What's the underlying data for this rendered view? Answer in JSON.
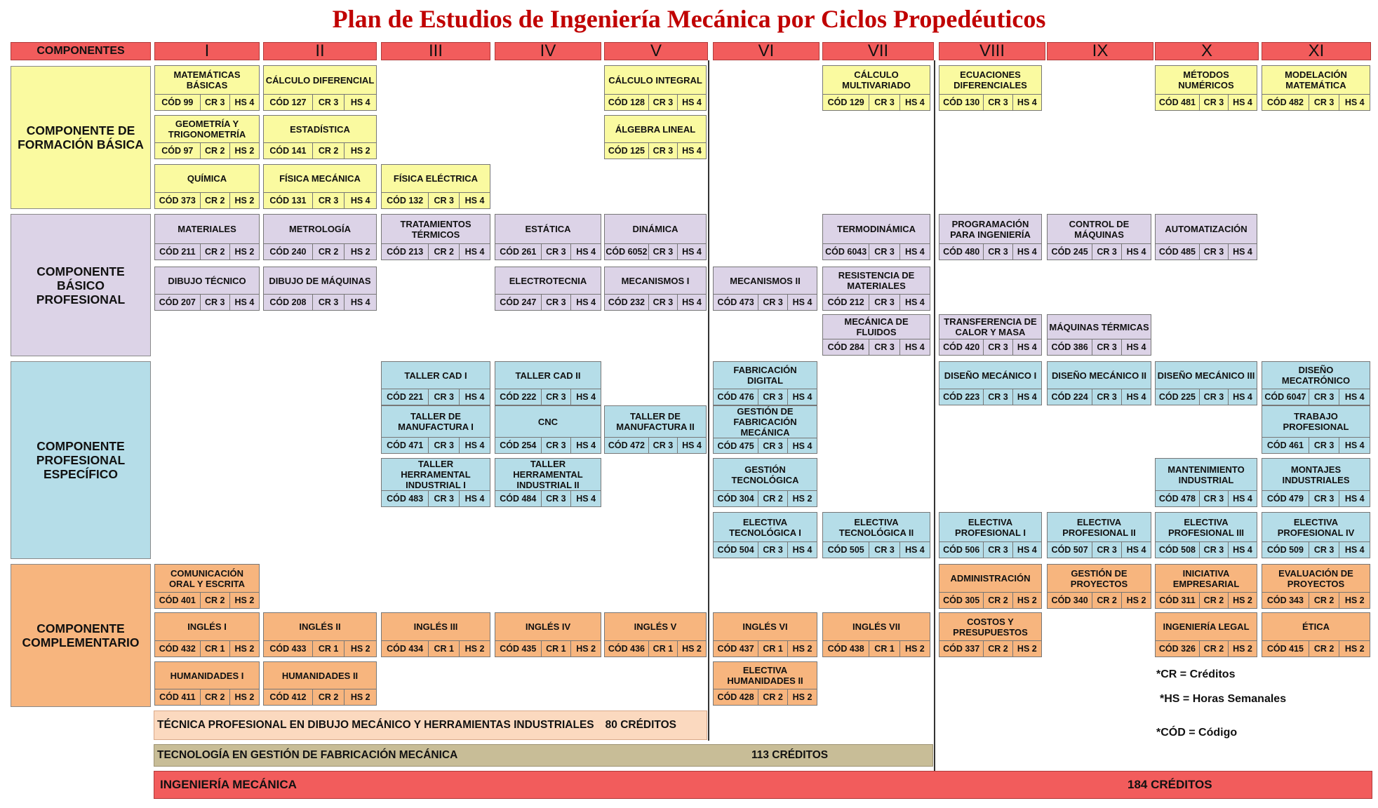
{
  "title": "Plan de Estudios de Ingeniería Mecánica por Ciclos Propedéuticos",
  "header": {
    "components_label": "COMPONENTES",
    "semesters": [
      "I",
      "II",
      "III",
      "IV",
      "V",
      "VI",
      "VII",
      "VIII",
      "IX",
      "X",
      "XI"
    ]
  },
  "categories": [
    {
      "label": "COMPONENTE DE FORMACIÓN  BÁSICA"
    },
    {
      "label": "COMPONENTE BÁSICO PROFESIONAL"
    },
    {
      "label": "COMPONENTE PROFESIONAL ESPECÍFICO"
    },
    {
      "label": "COMPONENTE COMPLEMENTARIO"
    }
  ],
  "courses": [
    {
      "name": "MATEMÁTICAS BÁSICAS",
      "cod": "CÓD 99",
      "cr": "CR 3",
      "hs": "HS 4",
      "type": "basica",
      "col": 0,
      "row": "b1"
    },
    {
      "name": "CÁLCULO DIFERENCIAL",
      "cod": "CÓD 127",
      "cr": "CR 3",
      "hs": "HS 4",
      "type": "basica",
      "col": 1,
      "row": "b1"
    },
    {
      "name": "CÁLCULO INTEGRAL",
      "cod": "CÓD 128",
      "cr": "CR 3",
      "hs": "HS 4",
      "type": "basica",
      "col": 4,
      "row": "b1"
    },
    {
      "name": "CÁLCULO MULTIVARIADO",
      "cod": "CÓD 129",
      "cr": "CR 3",
      "hs": "HS 4",
      "type": "basica",
      "col": 6,
      "row": "b1"
    },
    {
      "name": "ECUACIONES DIFERENCIALES",
      "cod": "CÓD 130",
      "cr": "CR 3",
      "hs": "HS 4",
      "type": "basica",
      "col": 7,
      "row": "b1"
    },
    {
      "name": "MÉTODOS NUMÉRICOS",
      "cod": "CÓD 481",
      "cr": "CR 3",
      "hs": "HS 4",
      "type": "basica",
      "col": 9,
      "row": "b1"
    },
    {
      "name": "MODELACIÓN MATEMÁTICA",
      "cod": "CÓD 482",
      "cr": "CR 3",
      "hs": "HS 4",
      "type": "basica",
      "col": 10,
      "row": "b1"
    },
    {
      "name": "GEOMETRÍA Y TRIGONOMETRÍA",
      "cod": "CÓD 97",
      "cr": "CR 2",
      "hs": "HS 2",
      "type": "basica",
      "col": 0,
      "row": "b2"
    },
    {
      "name": "ESTADÍSTICA",
      "cod": "CÓD 141",
      "cr": "CR 2",
      "hs": "HS 2",
      "type": "basica",
      "col": 1,
      "row": "b2"
    },
    {
      "name": "ÁLGEBRA LINEAL",
      "cod": "CÓD 125",
      "cr": "CR 3",
      "hs": "HS 4",
      "type": "basica",
      "col": 4,
      "row": "b2"
    },
    {
      "name": "QUÍMICA",
      "cod": "CÓD 373",
      "cr": "CR 2",
      "hs": "HS 2",
      "type": "basica",
      "col": 0,
      "row": "b3"
    },
    {
      "name": "FÍSICA MECÁNICA",
      "cod": "CÓD 131",
      "cr": "CR 3",
      "hs": "HS 4",
      "type": "basica",
      "col": 1,
      "row": "b3"
    },
    {
      "name": "FÍSICA ELÉCTRICA",
      "cod": "CÓD 132",
      "cr": "CR 3",
      "hs": "HS 4",
      "type": "basica",
      "col": 2,
      "row": "b3"
    },
    {
      "name": "MATERIALES",
      "cod": "CÓD 211",
      "cr": "CR 2",
      "hs": "HS 2",
      "type": "bprof",
      "col": 0,
      "row": "p1"
    },
    {
      "name": "METROLOGÍA",
      "cod": "CÓD 240",
      "cr": "CR 2",
      "hs": "HS 2",
      "type": "bprof",
      "col": 1,
      "row": "p1"
    },
    {
      "name": "TRATAMIENTOS TÉRMICOS",
      "cod": "CÓD 213",
      "cr": "CR 2",
      "hs": "HS 4",
      "type": "bprof",
      "col": 2,
      "row": "p1"
    },
    {
      "name": "ESTÁTICA",
      "cod": "CÓD 261",
      "cr": "CR 3",
      "hs": "HS 4",
      "type": "bprof",
      "col": 3,
      "row": "p1"
    },
    {
      "name": "DINÁMICA",
      "cod": "CÓD 6052",
      "cr": "CR 3",
      "hs": "HS 4",
      "type": "bprof",
      "col": 4,
      "row": "p1"
    },
    {
      "name": "TERMODINÁMICA",
      "cod": "CÓD 6043",
      "cr": "CR 3",
      "hs": "HS 4",
      "type": "bprof",
      "col": 6,
      "row": "p1"
    },
    {
      "name": "PROGRAMACIÓN PARA INGENIERÍA",
      "cod": "CÓD 480",
      "cr": "CR 3",
      "hs": "HS 4",
      "type": "bprof",
      "col": 7,
      "row": "p1"
    },
    {
      "name": "CONTROL DE MÁQUINAS",
      "cod": "CÓD 245",
      "cr": "CR 3",
      "hs": "HS 4",
      "type": "bprof",
      "col": 8,
      "row": "p1"
    },
    {
      "name": "AUTOMATIZACIÓN",
      "cod": "CÓD 485",
      "cr": "CR 3",
      "hs": "HS 4",
      "type": "bprof",
      "col": 9,
      "row": "p1"
    },
    {
      "name": "DIBUJO TÉCNICO",
      "cod": "CÓD 207",
      "cr": "CR 3",
      "hs": "HS 4",
      "type": "bprof",
      "col": 0,
      "row": "p2"
    },
    {
      "name": "DIBUJO DE MÁQUINAS",
      "cod": "CÓD 208",
      "cr": "CR 3",
      "hs": "HS 4",
      "type": "bprof",
      "col": 1,
      "row": "p2"
    },
    {
      "name": "ELECTROTECNIA",
      "cod": "CÓD 247",
      "cr": "CR 3",
      "hs": "HS 4",
      "type": "bprof",
      "col": 3,
      "row": "p2"
    },
    {
      "name": "MECANISMOS I",
      "cod": "CÓD 232",
      "cr": "CR 3",
      "hs": "HS 4",
      "type": "bprof",
      "col": 4,
      "row": "p2"
    },
    {
      "name": "MECANISMOS II",
      "cod": "CÓD 473",
      "cr": "CR 3",
      "hs": "HS 4",
      "type": "bprof",
      "col": 5,
      "row": "p2"
    },
    {
      "name": "RESISTENCIA DE MATERIALES",
      "cod": "CÓD 212",
      "cr": "CR 3",
      "hs": "HS 4",
      "type": "bprof",
      "col": 6,
      "row": "p2"
    },
    {
      "name": "MECÁNICA DE FLUIDOS",
      "cod": "CÓD 284",
      "cr": "CR 3",
      "hs": "HS 4",
      "type": "bprof",
      "col": 6,
      "row": "p3"
    },
    {
      "name": "TRANSFERENCIA DE CALOR Y MASA",
      "cod": "CÓD 420",
      "cr": "CR 3",
      "hs": "HS 4",
      "type": "bprof",
      "col": 7,
      "row": "p3"
    },
    {
      "name": "MÁQUINAS TÉRMICAS",
      "cod": "CÓD 386",
      "cr": "CR 3",
      "hs": "HS 4",
      "type": "bprof",
      "col": 8,
      "row": "p3"
    },
    {
      "name": "TALLER  CAD I",
      "cod": "CÓD 221",
      "cr": "CR 3",
      "hs": "HS 4",
      "type": "espec",
      "col": 2,
      "row": "e1"
    },
    {
      "name": "TALLER  CAD II",
      "cod": "CÓD 222",
      "cr": "CR 3",
      "hs": "HS 4",
      "type": "espec",
      "col": 3,
      "row": "e1"
    },
    {
      "name": "FABRICACIÓN DIGITAL",
      "cod": "CÓD 476",
      "cr": "CR 3",
      "hs": "HS 4",
      "type": "espec",
      "col": 5,
      "row": "e1"
    },
    {
      "name": "DISEÑO MECÁNICO I",
      "cod": "CÓD 223",
      "cr": "CR 3",
      "hs": "HS 4",
      "type": "espec",
      "col": 7,
      "row": "e1"
    },
    {
      "name": "DISEÑO MECÁNICO II",
      "cod": "CÓD 224",
      "cr": "CR 3",
      "hs": "HS 4",
      "type": "espec",
      "col": 8,
      "row": "e1"
    },
    {
      "name": "DISEÑO MECÁNICO III",
      "cod": "CÓD 225",
      "cr": "CR 3",
      "hs": "HS 4",
      "type": "espec",
      "col": 9,
      "row": "e1"
    },
    {
      "name": "DISEÑO MECATRÓNICO",
      "cod": "CÓD 6047",
      "cr": "CR 3",
      "hs": "HS 4",
      "type": "espec",
      "col": 10,
      "row": "e1"
    },
    {
      "name": "TALLER DE MANUFACTURA I",
      "cod": "CÓD 471",
      "cr": "CR 3",
      "hs": "HS 4",
      "type": "espec",
      "col": 2,
      "row": "e2"
    },
    {
      "name": "CNC",
      "cod": "CÓD 254",
      "cr": "CR 3",
      "hs": "HS 4",
      "type": "espec",
      "col": 3,
      "row": "e2"
    },
    {
      "name": "TALLER DE MANUFACTURA II",
      "cod": "CÓD 472",
      "cr": "CR 3",
      "hs": "HS 4",
      "type": "espec",
      "col": 4,
      "row": "e2"
    },
    {
      "name": "GESTIÓN DE FABRICACIÓN MECÁNICA",
      "cod": "CÓD 475",
      "cr": "CR 3",
      "hs": "HS 4",
      "type": "espec",
      "col": 5,
      "row": "e2"
    },
    {
      "name": "TRABAJO PROFESIONAL",
      "cod": "CÓD 461",
      "cr": "CR 3",
      "hs": "HS 4",
      "type": "espec",
      "col": 10,
      "row": "e2"
    },
    {
      "name": "TALLER HERRAMENTAL INDUSTRIAL I",
      "cod": "CÓD 483",
      "cr": "CR 3",
      "hs": "HS 4",
      "type": "espec",
      "col": 2,
      "row": "e3"
    },
    {
      "name": "TALLER HERRAMENTAL INDUSTRIAL II",
      "cod": "CÓD 484",
      "cr": "CR 3",
      "hs": "HS 4",
      "type": "espec",
      "col": 3,
      "row": "e3"
    },
    {
      "name": "GESTIÓN TECNOLÓGICA",
      "cod": "CÓD 304",
      "cr": "CR 2",
      "hs": "HS 2",
      "type": "espec",
      "col": 5,
      "row": "e3"
    },
    {
      "name": "MANTENIMIENTO INDUSTRIAL",
      "cod": "CÓD 478",
      "cr": "CR 3",
      "hs": "HS 4",
      "type": "espec",
      "col": 9,
      "row": "e3"
    },
    {
      "name": "MONTAJES INDUSTRIALES",
      "cod": "CÓD 479",
      "cr": "CR 3",
      "hs": "HS 4",
      "type": "espec",
      "col": 10,
      "row": "e3"
    },
    {
      "name": "ELECTIVA TECNOLÓGICA I",
      "cod": "CÓD 504",
      "cr": "CR 3",
      "hs": "HS 4",
      "type": "espec",
      "col": 5,
      "row": "e4"
    },
    {
      "name": "ELECTIVA TECNOLÓGICA II",
      "cod": "CÓD 505",
      "cr": "CR 3",
      "hs": "HS 4",
      "type": "espec",
      "col": 6,
      "row": "e4"
    },
    {
      "name": "ELECTIVA PROFESIONAL I",
      "cod": "CÓD 506",
      "cr": "CR 3",
      "hs": "HS 4",
      "type": "espec",
      "col": 7,
      "row": "e4"
    },
    {
      "name": "ELECTIVA PROFESIONAL II",
      "cod": "CÓD 507",
      "cr": "CR 3",
      "hs": "HS 4",
      "type": "espec",
      "col": 8,
      "row": "e4"
    },
    {
      "name": "ELECTIVA PROFESIONAL III",
      "cod": "CÓD 508",
      "cr": "CR 3",
      "hs": "HS 4",
      "type": "espec",
      "col": 9,
      "row": "e4"
    },
    {
      "name": "ELECTIVA PROFESIONAL IV",
      "cod": "CÓD 509",
      "cr": "CR 3",
      "hs": "HS 4",
      "type": "espec",
      "col": 10,
      "row": "e4"
    },
    {
      "name": "COMUNICACIÓN ORAL Y ESCRITA",
      "cod": "CÓD 401",
      "cr": "CR 2",
      "hs": "HS 2",
      "type": "compl",
      "col": 0,
      "row": "c1"
    },
    {
      "name": "ADMINISTRACIÓN",
      "cod": "CÓD 305",
      "cr": "CR 2",
      "hs": "HS 2",
      "type": "compl",
      "col": 7,
      "row": "c1"
    },
    {
      "name": "GESTIÓN DE PROYECTOS",
      "cod": "CÓD 340",
      "cr": "CR 2",
      "hs": "HS 2",
      "type": "compl",
      "col": 8,
      "row": "c1"
    },
    {
      "name": "INICIATIVA EMPRESARIAL",
      "cod": "CÓD 311",
      "cr": "CR 2",
      "hs": "HS 2",
      "type": "compl",
      "col": 9,
      "row": "c1"
    },
    {
      "name": "EVALUACIÓN DE PROYECTOS",
      "cod": "CÓD 343",
      "cr": "CR 2",
      "hs": "HS 2",
      "type": "compl",
      "col": 10,
      "row": "c1"
    },
    {
      "name": "INGLÉS  I",
      "cod": "CÓD 432",
      "cr": "CR 1",
      "hs": "HS 2",
      "type": "compl",
      "col": 0,
      "row": "c2"
    },
    {
      "name": "INGLÉS  II",
      "cod": "CÓD 433",
      "cr": "CR 1",
      "hs": "HS 2",
      "type": "compl",
      "col": 1,
      "row": "c2"
    },
    {
      "name": "INGLÉS  III",
      "cod": "CÓD 434",
      "cr": "CR 1",
      "hs": "HS 2",
      "type": "compl",
      "col": 2,
      "row": "c2"
    },
    {
      "name": "INGLÉS  IV",
      "cod": "CÓD 435",
      "cr": "CR 1",
      "hs": "HS 2",
      "type": "compl",
      "col": 3,
      "row": "c2"
    },
    {
      "name": "INGLÉS V",
      "cod": "CÓD 436",
      "cr": "CR 1",
      "hs": "HS 2",
      "type": "compl",
      "col": 4,
      "row": "c2"
    },
    {
      "name": "INGLÉS VI",
      "cod": "CÓD 437",
      "cr": "CR 1",
      "hs": "HS 2",
      "type": "compl",
      "col": 5,
      "row": "c2"
    },
    {
      "name": "INGLÉS VII",
      "cod": "CÓD 438",
      "cr": "CR 1",
      "hs": "HS 2",
      "type": "compl",
      "col": 6,
      "row": "c2"
    },
    {
      "name": "COSTOS Y PRESUPUESTOS",
      "cod": "CÓD 337",
      "cr": "CR 2",
      "hs": "HS 2",
      "type": "compl",
      "col": 7,
      "row": "c2"
    },
    {
      "name": "INGENIERÍA LEGAL",
      "cod": "CÓD 326",
      "cr": "CR 2",
      "hs": "HS 2",
      "type": "compl",
      "col": 9,
      "row": "c2"
    },
    {
      "name": "ÉTICA",
      "cod": "CÓD 415",
      "cr": "CR 2",
      "hs": "HS 2",
      "type": "compl",
      "col": 10,
      "row": "c2"
    },
    {
      "name": "HUMANIDADES I",
      "cod": "CÓD 411",
      "cr": "CR 2",
      "hs": "HS 2",
      "type": "compl",
      "col": 0,
      "row": "c3"
    },
    {
      "name": "HUMANIDADES  II",
      "cod": "CÓD 412",
      "cr": "CR 2",
      "hs": "HS 2",
      "type": "compl",
      "col": 1,
      "row": "c3"
    },
    {
      "name": "ELECTIVA HUMANIDADES II",
      "cod": "CÓD 428",
      "cr": "CR 2",
      "hs": "HS 2",
      "type": "compl",
      "col": 5,
      "row": "c3"
    }
  ],
  "legend": {
    "cr": "*CR = Créditos",
    "hs": "*HS = Horas   Semanales",
    "cod": "*CÓD =  Código"
  },
  "levels": [
    {
      "name": "TÉCNICA PROFESIONAL EN DIBUJO MECÁNICO Y HERRAMIENTAS INDUSTRIALES",
      "credits": "80 CRÉDITOS",
      "color": "#fbd9bf"
    },
    {
      "name": "TECNOLOGÍA EN GESTIÓN DE FABRICACIÓN MECÁNICA",
      "credits": "113 CRÉDITOS",
      "color": "#c8bd97"
    },
    {
      "name": "INGENIERÍA MECÁNICA",
      "credits": "184 CRÉDITOS",
      "color": "#f25c5c"
    }
  ],
  "colors": {
    "basica": "#fafaa0",
    "bprof": "#dcd3e7",
    "espec": "#b5dde8",
    "compl": "#f7b57e",
    "header": "#f25c5c",
    "title": "#c00000"
  }
}
